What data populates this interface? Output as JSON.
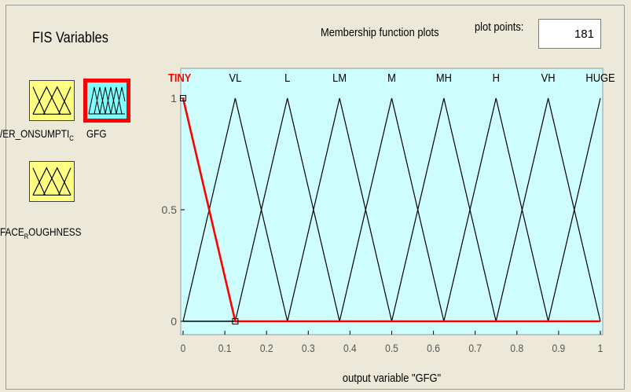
{
  "fis_panel": {
    "title": "FIS Variables",
    "variables": [
      {
        "label": "/ER_ONSUMPTI",
        "label_sub": "C",
        "kind": "input",
        "color": "#ffff80"
      },
      {
        "label": "GFG",
        "kind": "output",
        "selected": true,
        "color": "#80ffff",
        "border_color": "#ff0000"
      },
      {
        "label": "FACE",
        "label_sub": "R",
        "label_tail": "OUGHNESS",
        "kind": "input",
        "color": "#ffff80"
      }
    ]
  },
  "plot_header": {
    "title": "Membership function plots",
    "plot_points_label": "plot points:",
    "plot_points_value": "181"
  },
  "colors": {
    "plot_bg": "#cdfdfd",
    "selected_mf": "#ff0000",
    "mf_line": "#000000"
  },
  "chart_data": {
    "type": "line",
    "xlabel": "output variable \"GFG\"",
    "xlim": [
      0,
      1
    ],
    "ylim": [
      0,
      1
    ],
    "xticks": [
      "0",
      "0.1",
      "0.2",
      "0.3",
      "0.4",
      "0.5",
      "0.6",
      "0.7",
      "0.8",
      "0.9",
      "1"
    ],
    "yticks": [
      "0",
      "0.5",
      "1"
    ],
    "series": [
      {
        "name": "TINY",
        "selected": true,
        "x": [
          0,
          0,
          0.125
        ],
        "y": [
          1,
          1,
          0
        ]
      },
      {
        "name": "VL",
        "x": [
          0,
          0.125,
          0.25
        ],
        "y": [
          0,
          1,
          0
        ]
      },
      {
        "name": "L",
        "x": [
          0.125,
          0.25,
          0.375
        ],
        "y": [
          0,
          1,
          0
        ]
      },
      {
        "name": "LM",
        "x": [
          0.25,
          0.375,
          0.5
        ],
        "y": [
          0,
          1,
          0
        ]
      },
      {
        "name": "M",
        "x": [
          0.375,
          0.5,
          0.625
        ],
        "y": [
          0,
          1,
          0
        ]
      },
      {
        "name": "MH",
        "x": [
          0.5,
          0.625,
          0.75
        ],
        "y": [
          0,
          1,
          0
        ]
      },
      {
        "name": "H",
        "x": [
          0.625,
          0.75,
          0.875
        ],
        "y": [
          0,
          1,
          0
        ]
      },
      {
        "name": "VH",
        "x": [
          0.75,
          0.875,
          1
        ],
        "y": [
          0,
          1,
          0
        ]
      },
      {
        "name": "HUGE",
        "x": [
          0.875,
          1,
          1
        ],
        "y": [
          0,
          1,
          1
        ]
      }
    ]
  }
}
